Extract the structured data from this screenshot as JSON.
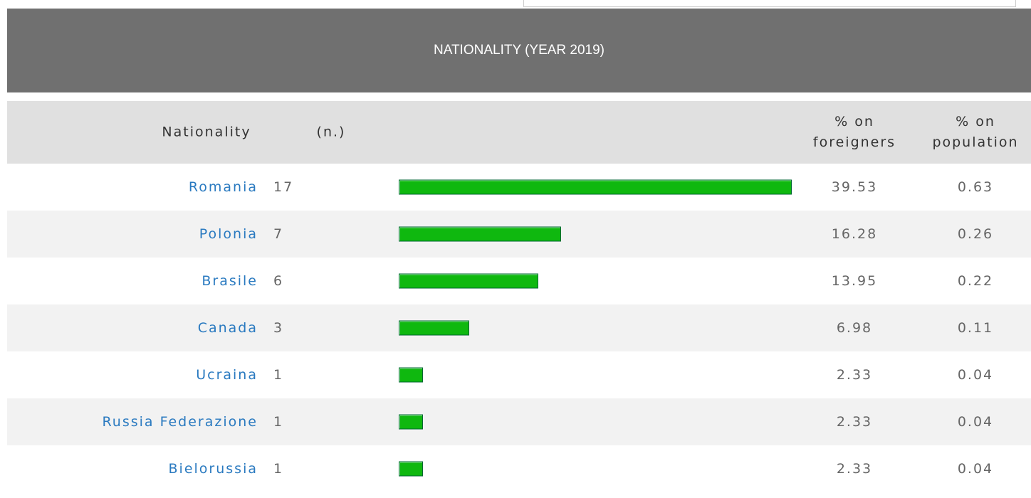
{
  "title": "NATIONALITY (YEAR 2019)",
  "header": {
    "nationality": "Nationality",
    "n": "(n.)",
    "pct_foreigners": "% on foreigners",
    "pct_population": "% on population"
  },
  "rows": [
    {
      "nationality": "Romania",
      "n": 17,
      "pct_foreigners": 39.53,
      "pct_population": 0.63
    },
    {
      "nationality": "Polonia",
      "n": 7,
      "pct_foreigners": 16.28,
      "pct_population": 0.26
    },
    {
      "nationality": "Brasile",
      "n": 6,
      "pct_foreigners": 13.95,
      "pct_population": 0.22
    },
    {
      "nationality": "Canada",
      "n": 3,
      "pct_foreigners": 6.98,
      "pct_population": 0.11
    },
    {
      "nationality": "Ucraina",
      "n": 1,
      "pct_foreigners": 2.33,
      "pct_population": 0.04
    },
    {
      "nationality": "Russia Federazione",
      "n": 1,
      "pct_foreigners": 2.33,
      "pct_population": 0.04
    },
    {
      "nationality": "Bielorussia",
      "n": 1,
      "pct_foreigners": 2.33,
      "pct_population": 0.04
    }
  ]
}
